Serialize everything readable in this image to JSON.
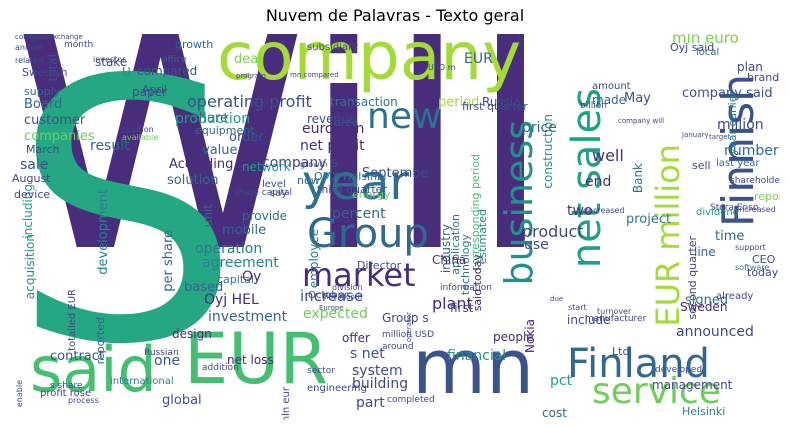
{
  "title": "Nuvem de Palavras - Texto geral",
  "words": [
    {
      "text": "Will",
      "color": "#472d7b"
    },
    {
      "text": "S",
      "color": "#26a784"
    },
    {
      "text": "company",
      "color": "#a5db36"
    },
    {
      "text": "EUR",
      "color": "#44bf70"
    },
    {
      "text": "said",
      "color": "#44bf70"
    },
    {
      "text": "mn",
      "color": "#3b528b"
    },
    {
      "text": "Finnish",
      "color": "#3b528b"
    },
    {
      "text": "net sales",
      "color": "#1fa187"
    },
    {
      "text": "EUR million",
      "color": "#a5db36"
    },
    {
      "text": "Group",
      "color": "#31688e"
    },
    {
      "text": "year",
      "color": "#2c728e"
    },
    {
      "text": "new",
      "color": "#2c728e"
    },
    {
      "text": "market",
      "color": "#472d7b"
    },
    {
      "text": "business",
      "color": "#21918c"
    },
    {
      "text": "Finland",
      "color": "#31688e"
    },
    {
      "text": "service",
      "color": "#6ece58"
    },
    {
      "text": "operating profit",
      "color": "#3b528b"
    },
    {
      "text": "corresponding period",
      "color": "#44bf70"
    },
    {
      "text": "construction",
      "color": "#21918c"
    },
    {
      "text": "said today",
      "color": "#482878"
    },
    {
      "text": "technology",
      "color": "#2a788e"
    },
    {
      "text": "period",
      "color": "#a5db36"
    },
    {
      "text": "Russia",
      "color": "#3e4989"
    },
    {
      "text": "price",
      "color": "#31688e"
    },
    {
      "text": "total",
      "color": "#3b528b"
    },
    {
      "text": "compared",
      "color": "#3b528b"
    },
    {
      "text": "deal",
      "color": "#7ad151"
    },
    {
      "text": "share",
      "color": "#3b528b"
    },
    {
      "text": "growth",
      "color": "#31688e"
    },
    {
      "text": "office",
      "color": "#31688e"
    },
    {
      "text": "production",
      "color": "#1fa187"
    },
    {
      "text": "Board",
      "color": "#31688e"
    },
    {
      "text": "customer",
      "color": "#3b528b"
    },
    {
      "text": "companies",
      "color": "#6ece58"
    },
    {
      "text": "result",
      "color": "#31688e"
    },
    {
      "text": "sale",
      "color": "#3b528b"
    },
    {
      "text": "order",
      "color": "#3b528b"
    },
    {
      "text": "value",
      "color": "#31688e"
    },
    {
      "text": "According",
      "color": "#472d7b"
    },
    {
      "text": "solution",
      "color": "#31688e"
    },
    {
      "text": "network",
      "color": "#1fa187"
    },
    {
      "text": "company s",
      "color": "#3e4989"
    },
    {
      "text": "net profit",
      "color": "#472d7b"
    },
    {
      "text": "euro mln",
      "color": "#472d7b"
    },
    {
      "text": "transaction",
      "color": "#2a788e"
    },
    {
      "text": "percent",
      "color": "#31688e"
    },
    {
      "text": "employee",
      "color": "#2a788e"
    },
    {
      "text": "increase",
      "color": "#3b528b"
    },
    {
      "text": "plant",
      "color": "#482878"
    },
    {
      "text": "expected",
      "color": "#6ece58"
    },
    {
      "text": "including",
      "color": "#1fa187"
    },
    {
      "text": "development",
      "color": "#26828e"
    },
    {
      "text": "acquisition",
      "color": "#21918c"
    },
    {
      "text": "mobile",
      "color": "#31688e"
    },
    {
      "text": "operation",
      "color": "#2a788e"
    },
    {
      "text": "agreement",
      "color": "#26828e"
    },
    {
      "text": "based",
      "color": "#31688e"
    },
    {
      "text": "Oyj HEL",
      "color": "#472d7b"
    },
    {
      "text": "investment",
      "color": "#31688e"
    },
    {
      "text": "contract",
      "color": "#3b528b"
    },
    {
      "text": "one",
      "color": "#3b528b"
    },
    {
      "text": "financial",
      "color": "#21918c"
    },
    {
      "text": "system",
      "color": "#3e4989"
    },
    {
      "text": "building",
      "color": "#3e4989"
    },
    {
      "text": "s net",
      "color": "#3b528b"
    },
    {
      "text": "part",
      "color": "#3e4989"
    },
    {
      "text": "pct",
      "color": "#1fa187"
    },
    {
      "text": "product",
      "color": "#3e4989"
    },
    {
      "text": "use",
      "color": "#3e4989"
    },
    {
      "text": "two",
      "color": "#472d7b"
    },
    {
      "text": "end",
      "color": "#472d7b"
    },
    {
      "text": "well",
      "color": "#472d7b"
    },
    {
      "text": "million",
      "color": "#3e4989"
    },
    {
      "text": "number",
      "color": "#31688e"
    },
    {
      "text": "Bank",
      "color": "#2c728e"
    },
    {
      "text": "project",
      "color": "#2a788e"
    },
    {
      "text": "time",
      "color": "#31688e"
    },
    {
      "text": "line",
      "color": "#31688e"
    },
    {
      "text": "signed",
      "color": "#2a788e"
    },
    {
      "text": "announced",
      "color": "#3e4989"
    },
    {
      "text": "management",
      "color": "#3e4989"
    },
    {
      "text": "company said",
      "color": "#3b528b"
    },
    {
      "text": "mln euro",
      "color": "#7ad151"
    },
    {
      "text": "report",
      "color": "#7ad151"
    },
    {
      "text": "Sweden",
      "color": "#482878"
    },
    {
      "text": "Helsinki",
      "color": "#26828e"
    },
    {
      "text": "Ltd",
      "color": "#3e4989"
    },
    {
      "text": "per share",
      "color": "#31688e"
    },
    {
      "text": "unit",
      "color": "#31688e"
    },
    {
      "text": "Oy",
      "color": "#472d7b"
    },
    {
      "text": "made",
      "color": "#31688e"
    },
    {
      "text": "May",
      "color": "#3b528b"
    },
    {
      "text": "plan",
      "color": "#3e4989"
    },
    {
      "text": "brand",
      "color": "#3e4989"
    },
    {
      "text": "sell",
      "color": "#3e4989"
    },
    {
      "text": "CEO",
      "color": "#3e4989"
    },
    {
      "text": "today",
      "color": "#3e4989"
    },
    {
      "text": "Nokia",
      "color": "#482878"
    },
    {
      "text": "industry",
      "color": "#31688e"
    },
    {
      "text": "Septembe",
      "color": "#3e4989"
    },
    {
      "text": "include",
      "color": "#3e4989"
    },
    {
      "text": "Group s",
      "color": "#3e4989"
    },
    {
      "text": "first",
      "color": "#3e4989"
    },
    {
      "text": "people",
      "color": "#472d7b"
    },
    {
      "text": "cost",
      "color": "#31688e"
    },
    {
      "text": "offer",
      "color": "#472d7b"
    },
    {
      "text": "net loss",
      "color": "#482878"
    },
    {
      "text": "global",
      "color": "#3b528b"
    },
    {
      "text": "design",
      "color": "#472d7b"
    },
    {
      "text": "reported",
      "color": "#31688e"
    },
    {
      "text": "provide",
      "color": "#31688e"
    },
    {
      "text": "capital",
      "color": "#2c728e"
    },
    {
      "text": "energy",
      "color": "#6ece58"
    },
    {
      "text": "Director",
      "color": "#3b528b"
    },
    {
      "text": "third quarter",
      "color": "#3b528b"
    },
    {
      "text": "second quarter",
      "color": "#3e4989"
    },
    {
      "text": "first quarter",
      "color": "#3e4989"
    },
    {
      "text": "estimated",
      "color": "#26828e"
    },
    {
      "text": "application",
      "color": "#2c728e"
    },
    {
      "text": "China",
      "color": "#482878"
    },
    {
      "text": "area",
      "color": "#3b528b"
    },
    {
      "text": "OMX Helsinki",
      "color": "#2c728e"
    },
    {
      "text": "equipment",
      "color": "#31688e"
    },
    {
      "text": "revenue",
      "color": "#3e4989"
    },
    {
      "text": "now",
      "color": "#31688e"
    },
    {
      "text": "EUR",
      "color": "#31688e"
    },
    {
      "text": "U",
      "color": "#21918c"
    },
    {
      "text": "paper",
      "color": "#3e4989"
    },
    {
      "text": "stake",
      "color": "#3e4989"
    },
    {
      "text": "Swedish",
      "color": "#3e4989"
    },
    {
      "text": "supply",
      "color": "#31688e"
    },
    {
      "text": "March",
      "color": "#3e4989"
    },
    {
      "text": "August",
      "color": "#3e4989"
    },
    {
      "text": "device",
      "color": "#3e4989"
    },
    {
      "text": "subsidiary",
      "color": "#3e4989"
    },
    {
      "text": "Oyj said",
      "color": "#3e4989"
    },
    {
      "text": "year earlier",
      "color": "#26828e"
    },
    {
      "text": "last year",
      "color": "#31688e"
    },
    {
      "text": "local",
      "color": "#31688e"
    },
    {
      "text": "amount",
      "color": "#3e4989"
    },
    {
      "text": "billion",
      "color": "#3e4989"
    },
    {
      "text": "April",
      "color": "#3e4989"
    },
    {
      "text": "say",
      "color": "#3e4989"
    },
    {
      "text": "level",
      "color": "#3e4989"
    },
    {
      "text": "Stora Enso",
      "color": "#3e4989"
    },
    {
      "text": "dividend",
      "color": "#21918c"
    },
    {
      "text": "shareholder",
      "color": "#3e4989"
    },
    {
      "text": "increased",
      "color": "#3e4989"
    },
    {
      "text": "support",
      "color": "#3e4989"
    },
    {
      "text": "software",
      "color": "#26828e"
    },
    {
      "text": "already",
      "color": "#3e4989"
    },
    {
      "text": "manufacturer",
      "color": "#3e4989"
    },
    {
      "text": "addition",
      "color": "#3e4989"
    },
    {
      "text": "Russian",
      "color": "#3e4989"
    },
    {
      "text": "profit rose",
      "color": "#3e4989"
    },
    {
      "text": "totalled EUR",
      "color": "#3e4989"
    },
    {
      "text": "international",
      "color": "#26828e"
    },
    {
      "text": "engineering",
      "color": "#3e4989"
    },
    {
      "text": "mln eur",
      "color": "#3e4989"
    },
    {
      "text": "sector",
      "color": "#3e4989"
    },
    {
      "text": "October",
      "color": "#3e4989"
    },
    {
      "text": "around",
      "color": "#3e4989"
    },
    {
      "text": "million USD",
      "color": "#3e4989"
    },
    {
      "text": "information",
      "color": "#3e4989"
    },
    {
      "text": "developed",
      "color": "#3e4989"
    },
    {
      "text": "capacity",
      "color": "#3e4989"
    },
    {
      "text": "completed",
      "color": "#3e4989"
    },
    {
      "text": "s share",
      "color": "#3e4989"
    },
    {
      "text": "process",
      "color": "#3e4989"
    },
    {
      "text": "enable",
      "color": "#3e4989"
    },
    {
      "text": "division",
      "color": "#3e4989"
    },
    {
      "text": "month",
      "color": "#3e4989"
    },
    {
      "text": "growth",
      "color": "#3e4989"
    },
    {
      "text": "position",
      "color": "#3e4989"
    },
    {
      "text": "available",
      "color": "#6ece58"
    },
    {
      "text": "share capital",
      "color": "#3e4989"
    },
    {
      "text": "Stock Exchange",
      "color": "#3e4989"
    },
    {
      "text": "consumer",
      "color": "#3e4989"
    },
    {
      "text": "annual",
      "color": "#3e4989"
    },
    {
      "text": "related",
      "color": "#3e4989"
    },
    {
      "text": "investor",
      "color": "#3e4989"
    },
    {
      "text": "program",
      "color": "#3e4989"
    },
    {
      "text": "mn compared",
      "color": "#3e4989"
    },
    {
      "text": "USD m",
      "color": "#3e4989"
    },
    {
      "text": "aim",
      "color": "#3e4989"
    },
    {
      "text": "company will",
      "color": "#3e4989"
    },
    {
      "text": "January",
      "color": "#3e4989"
    },
    {
      "text": "target",
      "color": "#3e4989"
    },
    {
      "text": "due",
      "color": "#3e4989"
    },
    {
      "text": "start",
      "color": "#3e4989"
    },
    {
      "text": "decreased",
      "color": "#3e4989"
    },
    {
      "text": "turnover",
      "color": "#3e4989"
    },
    {
      "text": "operator",
      "color": "#3e4989"
    },
    {
      "text": "Europe",
      "color": "#3e4989"
    },
    {
      "text": "nine month",
      "color": "#3e4989"
    }
  ]
}
